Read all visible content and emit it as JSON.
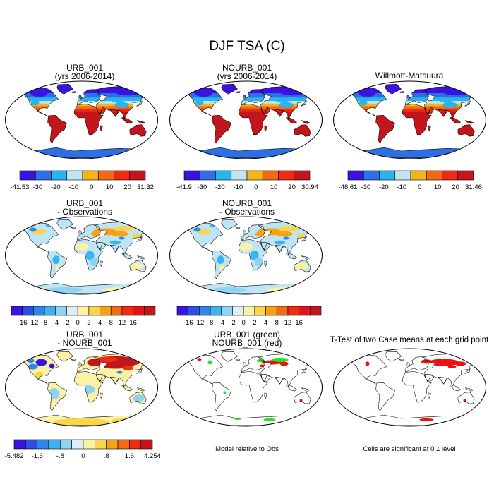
{
  "title": "DJF TSA (C)",
  "panels": [
    {
      "id": "p1",
      "title1": "URB_001",
      "title2": "(yrs 2006-2014)",
      "style": "abs_temp"
    },
    {
      "id": "p2",
      "title1": "NOURB_001",
      "title2": "(yrs 2006-2014)",
      "style": "abs_temp"
    },
    {
      "id": "p3",
      "title1": "Willmott-Matsuura",
      "title2": "",
      "style": "abs_temp"
    },
    {
      "id": "p4",
      "title1": "URB_001",
      "title2": "- Observations",
      "style": "diff_obs"
    },
    {
      "id": "p5",
      "title1": "NOURB_001",
      "title2": "- Observations",
      "style": "diff_obs"
    },
    {
      "id": "p6",
      "title1": "URB_001",
      "title2": "- NOURB_001",
      "style": "diff_case"
    },
    {
      "id": "p7",
      "title1": "URB_001 (green)",
      "title2": "NOURB_001 (red)",
      "style": "sig_two",
      "note": "Model relative to Obs"
    },
    {
      "id": "p8",
      "title1": "T-Test of two Case means at each grid point",
      "title2": "",
      "style": "sig_one",
      "note": "Cells are significant at 0.1 level"
    }
  ],
  "colorbars": [
    {
      "id": "cb1",
      "colors": [
        "#3a13e0",
        "#2f6fe6",
        "#27b5ee",
        "#bfe5f5",
        "#f2b416",
        "#f26a14",
        "#ed2a13",
        "#c2161c"
      ],
      "labels": [
        "-41.53",
        "-30",
        "-20",
        "-10",
        "0",
        "10",
        "20",
        "31.32"
      ]
    },
    {
      "id": "cb2",
      "colors": [
        "#3a13e0",
        "#2f6fe6",
        "#27b5ee",
        "#bfe5f5",
        "#f2b416",
        "#f26a14",
        "#ed2a13",
        "#c2161c"
      ],
      "labels": [
        "-41.9",
        "-30",
        "-20",
        "-10",
        "0",
        "10",
        "20",
        "30.94"
      ]
    },
    {
      "id": "cb3",
      "colors": [
        "#3a13e0",
        "#2f6fe6",
        "#27b5ee",
        "#bfe5f5",
        "#f2b416",
        "#f26a14",
        "#ed2a13",
        "#c2161c"
      ],
      "labels": [
        "-48.61",
        "-30",
        "-20",
        "-10",
        "0",
        "10",
        "20",
        "31.46"
      ]
    },
    {
      "id": "cb4",
      "colors": [
        "#3a13e0",
        "#2c4fe3",
        "#2f86ea",
        "#3cb3ee",
        "#8fd3f2",
        "#dceef8",
        "#fbf2a6",
        "#f9d44d",
        "#f5a218",
        "#f26a14",
        "#ec2d12",
        "#e3131e",
        "#c2161c"
      ],
      "labels": [
        "-16",
        "-12",
        "-8",
        "-4",
        "-2",
        "0",
        "2",
        "4",
        "8",
        "12",
        "16"
      ]
    },
    {
      "id": "cb5",
      "colors": [
        "#3a13e0",
        "#2c4fe3",
        "#2f86ea",
        "#3cb3ee",
        "#8fd3f2",
        "#dceef8",
        "#fbf2a6",
        "#f9d44d",
        "#f5a218",
        "#f26a14",
        "#ec2d12",
        "#e3131e",
        "#c2161c"
      ],
      "labels": [
        "-16",
        "-12",
        "-8",
        "-4",
        "-2",
        "0",
        "2",
        "4",
        "8",
        "12",
        "16"
      ]
    },
    {
      "id": "cb6",
      "colors": [
        "#3a13e0",
        "#2c4fe3",
        "#2f86ea",
        "#3cb3ee",
        "#8fd3f2",
        "#dceef8",
        "#fbf2a6",
        "#f9d44d",
        "#f5a218",
        "#f26a14",
        "#ec2d12",
        "#c2161c"
      ],
      "labels": [
        "-5.482",
        "-1.6",
        "-.8",
        "0",
        ".8",
        "1.6",
        "4.254"
      ]
    }
  ],
  "palettes": {
    "abs_temp": {
      "arctic": "#3a13e0",
      "cold": "#2f6fe6",
      "cool": "#27b5ee",
      "mild": "#bfe5f5",
      "warm": "#f2b416",
      "hot": "#f26a14",
      "hotter": "#ed2a13",
      "tropic": "#c2161c"
    },
    "diff_obs": {
      "base": "#bfe5f5",
      "mid": "#8fd3f2",
      "neg": "#3cb3ee",
      "pos": "#fbf2a6",
      "pos2": "#f9d44d",
      "pos3": "#f5a218",
      "neg2": "#2f86ea",
      "ice": "#dceef8"
    },
    "diff_case": {
      "base": "#fbf2a6",
      "mid": "#8fd3f2",
      "neg": "#2f86ea",
      "pos": "#f9d44d",
      "pos2": "#ec2d12",
      "pos3": "#c2161c",
      "neg2": "#3a13e0",
      "ice": "#f9d44d"
    },
    "sig": {
      "green": "#22e51e",
      "red": "#ee1010"
    }
  }
}
